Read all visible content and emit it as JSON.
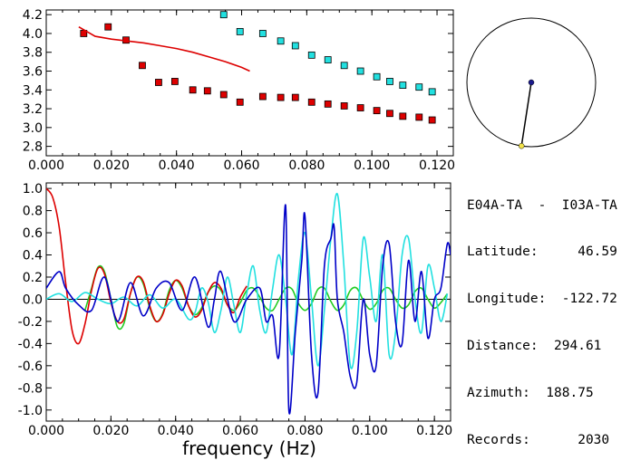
{
  "info_panel": {
    "station_pair": "E04A-TA  -  I03A-TA",
    "latitude": "Latitude:     46.59",
    "longitude": "Longitude:  -122.72",
    "distance": "Distance:  294.61",
    "azimuth": "Azimuth:  188.75",
    "records": "Records:      2030"
  },
  "compass": {
    "azimuth_deg": 188.75
  },
  "colors": {
    "red": "#dd0000",
    "cyan": "#22e0e0",
    "blue": "#0000c8",
    "green": "#22cc22",
    "black": "#000000"
  },
  "chart_data": [
    {
      "type": "scatter",
      "xlim": [
        0.0,
        0.125
      ],
      "ylim": [
        2.7,
        4.25
      ],
      "x_ticks": [
        "0.000",
        "0.020",
        "0.040",
        "0.060",
        "0.080",
        "0.100",
        "0.120"
      ],
      "y_ticks": [
        "2.8",
        "3.0",
        "3.2",
        "3.4",
        "3.6",
        "3.8",
        "4.0",
        "4.2"
      ],
      "series": [
        {
          "kind": "markers",
          "color": "red",
          "x": [
            0.0115,
            0.019,
            0.0245,
            0.0295,
            0.0345,
            0.0395,
            0.045,
            0.0495,
            0.0545,
            0.0595,
            0.0665,
            0.072,
            0.0765,
            0.0815,
            0.0865,
            0.0915,
            0.0965,
            0.1015,
            0.1055,
            0.1095,
            0.1145,
            0.1185
          ],
          "y": [
            4.0,
            4.07,
            3.93,
            3.66,
            3.48,
            3.49,
            3.4,
            3.39,
            3.35,
            3.27,
            3.33,
            3.32,
            3.32,
            3.27,
            3.25,
            3.23,
            3.21,
            3.18,
            3.15,
            3.12,
            3.11,
            3.08
          ]
        },
        {
          "kind": "markers",
          "color": "cyan",
          "x": [
            0.0545,
            0.0595,
            0.0665,
            0.072,
            0.0765,
            0.0815,
            0.0865,
            0.0915,
            0.0965,
            0.1015,
            0.1055,
            0.1095,
            0.1145,
            0.1185
          ],
          "y": [
            4.2,
            4.02,
            4.0,
            3.92,
            3.87,
            3.77,
            3.72,
            3.66,
            3.6,
            3.54,
            3.49,
            3.45,
            3.43,
            3.38
          ]
        },
        {
          "kind": "line",
          "color": "red",
          "x": [
            0.01,
            0.015,
            0.02,
            0.025,
            0.03,
            0.035,
            0.04,
            0.045,
            0.05,
            0.055,
            0.06,
            0.0625
          ],
          "y": [
            4.07,
            3.97,
            3.94,
            3.92,
            3.9,
            3.87,
            3.84,
            3.8,
            3.75,
            3.7,
            3.64,
            3.6
          ]
        }
      ]
    },
    {
      "type": "line",
      "xlabel": "frequency (Hz)",
      "xlim": [
        0.0,
        0.125
      ],
      "ylim": [
        -1.1,
        1.05
      ],
      "x_ticks": [
        "0.000",
        "0.020",
        "0.040",
        "0.060",
        "0.080",
        "0.100",
        "0.120"
      ],
      "y_ticks": [
        "1.0",
        "0.8",
        "0.6",
        "0.4",
        "0.2",
        "0.0",
        "-0.2",
        "-0.4",
        "-0.6",
        "-0.8",
        "-1.0"
      ],
      "series": [
        {
          "color": "red",
          "x": [
            0,
            0.002,
            0.004,
            0.006,
            0.008,
            0.01,
            0.012,
            0.014,
            0.016,
            0.018,
            0.02,
            0.022,
            0.024,
            0.026,
            0.028,
            0.03,
            0.032,
            0.034,
            0.036,
            0.038,
            0.04,
            0.042,
            0.044,
            0.046,
            0.048,
            0.05,
            0.052,
            0.054,
            0.056,
            0.058,
            0.06,
            0.062
          ],
          "y": [
            1.0,
            0.92,
            0.65,
            0.15,
            -0.28,
            -0.4,
            -0.22,
            0.08,
            0.28,
            0.23,
            -0.03,
            -0.2,
            -0.18,
            0.05,
            0.2,
            0.16,
            -0.06,
            -0.2,
            -0.14,
            0.05,
            0.17,
            0.12,
            -0.06,
            -0.16,
            -0.1,
            0.06,
            0.15,
            0.1,
            -0.05,
            -0.12,
            0.02,
            0.12
          ]
        },
        {
          "color": "green",
          "x": [
            0.012,
            0.014,
            0.016,
            0.018,
            0.02,
            0.022,
            0.024,
            0.026,
            0.028,
            0.03,
            0.032,
            0.034,
            0.036,
            0.038,
            0.04,
            0.042,
            0.044,
            0.046,
            0.048,
            0.05,
            0.052,
            0.054,
            0.056,
            0.058,
            0.06,
            0.062,
            0.064,
            0.066,
            0.068,
            0.07,
            0.072,
            0.074,
            0.076,
            0.078,
            0.08,
            0.082,
            0.084,
            0.086,
            0.088,
            0.09,
            0.092,
            0.094,
            0.096,
            0.098,
            0.1,
            0.102,
            0.104,
            0.106,
            0.108,
            0.11,
            0.112,
            0.114,
            0.116,
            0.118,
            0.12,
            0.122,
            0.124
          ],
          "y": [
            -0.1,
            0.1,
            0.29,
            0.25,
            0.0,
            -0.25,
            -0.22,
            0.05,
            0.2,
            0.14,
            -0.08,
            -0.2,
            -0.13,
            0.08,
            0.17,
            0.1,
            -0.06,
            -0.14,
            -0.08,
            0.06,
            0.12,
            0.08,
            -0.05,
            -0.1,
            -0.03,
            0.08,
            0.1,
            0.02,
            -0.08,
            -0.1,
            0.0,
            0.1,
            0.09,
            -0.04,
            -0.1,
            -0.04,
            0.09,
            0.1,
            -0.02,
            -0.1,
            -0.05,
            0.08,
            0.1,
            -0.01,
            -0.09,
            -0.04,
            0.08,
            0.1,
            0.0,
            -0.08,
            -0.05,
            0.07,
            0.1,
            0.0,
            -0.08,
            -0.03,
            0.05
          ]
        },
        {
          "color": "cyan",
          "x": [
            0,
            0.004,
            0.008,
            0.012,
            0.016,
            0.02,
            0.024,
            0.028,
            0.032,
            0.036,
            0.04,
            0.044,
            0.046,
            0.048,
            0.05,
            0.052,
            0.054,
            0.056,
            0.058,
            0.06,
            0.062,
            0.064,
            0.066,
            0.068,
            0.07,
            0.072,
            0.074,
            0.076,
            0.078,
            0.08,
            0.082,
            0.084,
            0.086,
            0.088,
            0.09,
            0.092,
            0.094,
            0.096,
            0.098,
            0.1,
            0.102,
            0.104,
            0.106,
            0.108,
            0.11,
            0.112,
            0.114,
            0.116,
            0.118,
            0.12,
            0.122,
            0.124
          ],
          "y": [
            0.0,
            0.05,
            -0.02,
            0.06,
            0.0,
            -0.04,
            0.02,
            -0.06,
            0.04,
            -0.08,
            0.0,
            -0.18,
            -0.12,
            0.1,
            -0.02,
            -0.3,
            -0.1,
            0.2,
            -0.05,
            -0.3,
            0.05,
            0.3,
            -0.1,
            -0.3,
            0.1,
            0.4,
            0.0,
            -0.5,
            0.2,
            0.6,
            0.0,
            -0.6,
            -0.1,
            0.55,
            0.95,
            0.3,
            -0.6,
            -0.3,
            0.55,
            0.2,
            -0.2,
            0.4,
            -0.5,
            -0.3,
            0.4,
            0.55,
            0.0,
            -0.3,
            0.3,
            0.1,
            -0.2,
            0.05
          ]
        },
        {
          "color": "blue",
          "x": [
            0,
            0.004,
            0.006,
            0.01,
            0.014,
            0.018,
            0.022,
            0.026,
            0.03,
            0.034,
            0.038,
            0.042,
            0.046,
            0.05,
            0.052,
            0.054,
            0.058,
            0.062,
            0.066,
            0.068,
            0.07,
            0.072,
            0.074,
            0.075,
            0.077,
            0.079,
            0.08,
            0.082,
            0.084,
            0.086,
            0.088,
            0.089,
            0.09,
            0.092,
            0.094,
            0.096,
            0.098,
            0.1,
            0.102,
            0.104,
            0.106,
            0.108,
            0.11,
            0.112,
            0.114,
            0.116,
            0.118,
            0.12,
            0.122,
            0.124,
            0.125
          ],
          "y": [
            0.1,
            0.25,
            0.1,
            -0.05,
            -0.1,
            0.2,
            -0.2,
            0.15,
            -0.15,
            0.1,
            0.15,
            -0.1,
            0.2,
            -0.25,
            0.0,
            0.25,
            -0.2,
            0.0,
            0.1,
            -0.2,
            -0.15,
            -0.5,
            0.85,
            -1.0,
            -0.3,
            0.35,
            0.75,
            -0.5,
            -0.85,
            0.3,
            0.55,
            0.65,
            0.0,
            -0.3,
            -0.7,
            -0.75,
            0.0,
            -0.5,
            -0.6,
            0.3,
            0.5,
            -0.2,
            -0.4,
            0.35,
            -0.2,
            0.25,
            -0.35,
            0.0,
            0.1,
            0.5,
            0.4
          ]
        }
      ]
    }
  ]
}
